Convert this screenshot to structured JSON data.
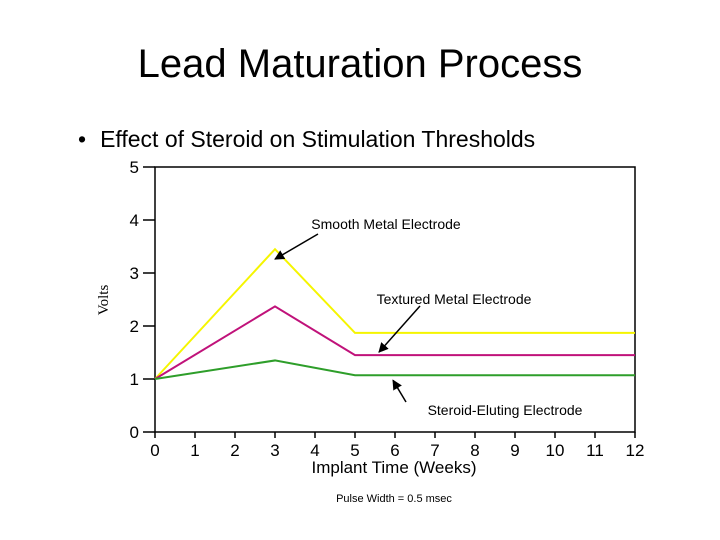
{
  "slide": {
    "title": "Lead Maturation Process",
    "bullet": "Effect of Steroid on Stimulation Thresholds"
  },
  "chart_data": {
    "type": "line",
    "xlabel": "Implant Time (Weeks)",
    "ylabel": "Volts",
    "xlim": [
      0,
      12
    ],
    "ylim": [
      0,
      5
    ],
    "x_ticks": [
      0,
      1,
      2,
      3,
      4,
      5,
      6,
      7,
      8,
      9,
      10,
      11,
      12
    ],
    "y_ticks": [
      0,
      1,
      2,
      3,
      4,
      5
    ],
    "grid": false,
    "footnote": "Pulse Width = 0.5 msec",
    "series": [
      {
        "name": "Smooth Metal Electrode",
        "color": "#f5f500",
        "x": [
          0,
          3,
          5,
          12
        ],
        "y": [
          1.0,
          3.45,
          1.87,
          1.87
        ]
      },
      {
        "name": "Textured Metal Electrode",
        "color": "#c0127a",
        "x": [
          0,
          3,
          5,
          12
        ],
        "y": [
          1.0,
          2.37,
          1.45,
          1.45
        ]
      },
      {
        "name": "Steroid-Eluting Electrode",
        "color": "#2e9e2a",
        "x": [
          0,
          3,
          5,
          12
        ],
        "y": [
          1.0,
          1.35,
          1.07,
          1.07
        ]
      }
    ],
    "annotations": [
      {
        "text": "Smooth Metal Electrode",
        "series": 0,
        "anchor_x": 3.0,
        "anchor_y": 3.45
      },
      {
        "text": "Textured Metal Electrode",
        "series": 1,
        "anchor_x": 5.6,
        "anchor_y": 1.45
      },
      {
        "text": "Steroid-Eluting Electrode",
        "series": 2,
        "anchor_x": 5.95,
        "anchor_y": 1.07
      }
    ]
  }
}
